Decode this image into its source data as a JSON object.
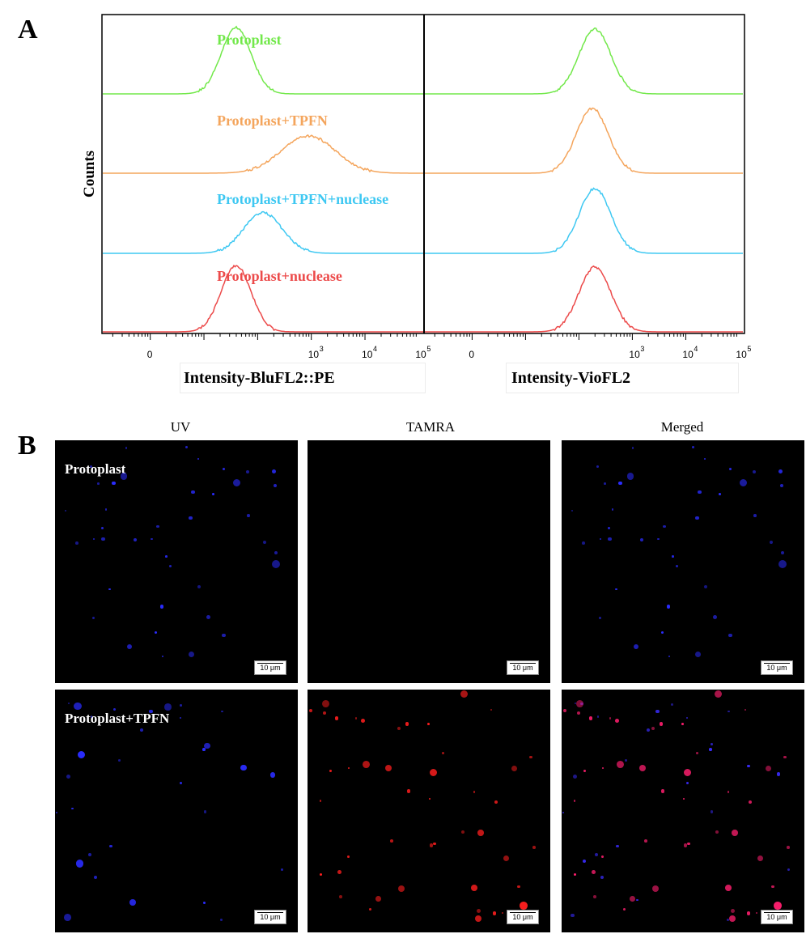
{
  "panel_a": {
    "label": "A",
    "ylabel": "Counts",
    "left_xlabel": "Intensity-BluFL2::PE",
    "right_xlabel": "Intensity-VioFL2",
    "ticks": [
      "0",
      "10",
      "10",
      "10"
    ],
    "tick_exponents": [
      "",
      "3",
      "4",
      "5"
    ],
    "legend": [
      {
        "text": "Protoplast",
        "color": "#72e84a"
      },
      {
        "text": "Protoplast+TPFN",
        "color": "#f4a55c"
      },
      {
        "text": "Protoplast+TPFN+nuclease",
        "color": "#3ec8f2"
      },
      {
        "text": "Protoplast+nuclease",
        "color": "#ec4a4a"
      }
    ],
    "chart_data": {
      "type": "area",
      "xlabel": "Intensity-BluFL2::PE / Intensity-VioFL2",
      "ylabel": "Counts",
      "x_ticks": [
        "0",
        "10^3",
        "10^4",
        "10^5"
      ],
      "series": [
        {
          "name": "Protoplast",
          "left_peak_log": 1.6,
          "right_peak_log": 2.3
        },
        {
          "name": "Protoplast+TPFN",
          "left_peak_log": 2.95,
          "right_peak_log": 2.25
        },
        {
          "name": "Protoplast+TPFN+nuclease",
          "left_peak_log": 2.1,
          "right_peak_log": 2.3
        },
        {
          "name": "Protoplast+nuclease",
          "left_peak_log": 1.6,
          "right_peak_log": 2.3
        }
      ]
    }
  },
  "panel_b": {
    "label": "B",
    "columns": [
      "UV",
      "TAMRA",
      "Merged"
    ],
    "rows": [
      "Protoplast",
      "Protoplast+TPFN"
    ],
    "scale_bar": "10 μm"
  }
}
